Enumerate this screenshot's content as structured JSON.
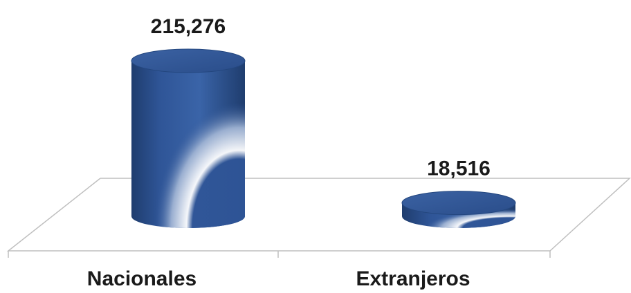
{
  "chart_data": {
    "type": "bar",
    "style": "3d-cylinder",
    "categories": [
      "Nacionales",
      "Extranjeros"
    ],
    "values": [
      215276,
      18516
    ],
    "value_labels": [
      "215,276",
      "18,516"
    ],
    "colors": {
      "bar": "#2f5597",
      "bar_dark": "#1f3d6e",
      "highlight": "#ffffff",
      "floor_line": "#bfbfbf"
    },
    "grid": false,
    "legend": "none"
  }
}
